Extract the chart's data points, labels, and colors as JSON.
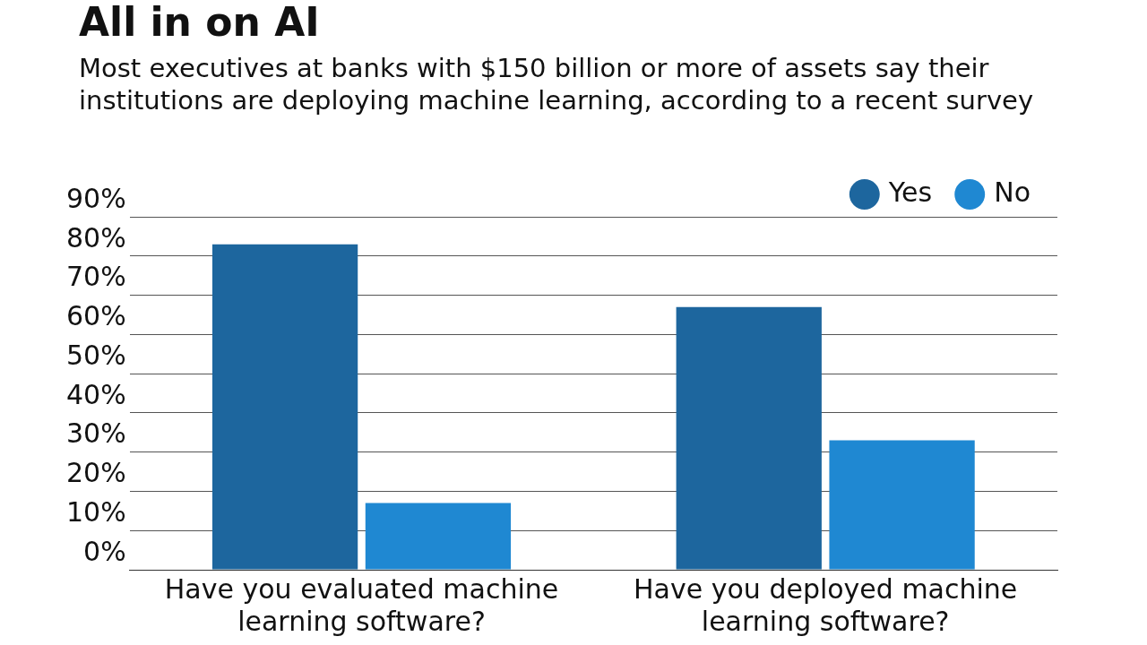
{
  "chart_data": {
    "type": "bar",
    "title": "All in on AI",
    "subtitle": "Most executives at banks with $150 billion or more of assets say their institutions are deploying machine learning, according to a recent survey",
    "categories": [
      "Have you evaluated machine learning software?",
      "Have you deployed machine learning software?"
    ],
    "series": [
      {
        "name": "Yes",
        "color": "#1d669e",
        "values": [
          83,
          67
        ]
      },
      {
        "name": "No",
        "color": "#1f88d2",
        "values": [
          17,
          33
        ]
      }
    ],
    "ylim": [
      0,
      90
    ],
    "yticks": [
      {
        "value": 0,
        "label": "0%"
      },
      {
        "value": 10,
        "label": "10%"
      },
      {
        "value": 20,
        "label": "20%"
      },
      {
        "value": 30,
        "label": "30%"
      },
      {
        "value": 40,
        "label": "40%"
      },
      {
        "value": 50,
        "label": "50%"
      },
      {
        "value": 60,
        "label": "60%"
      },
      {
        "value": 70,
        "label": "70%"
      },
      {
        "value": 80,
        "label": "80%"
      },
      {
        "value": 90,
        "label": "90%"
      }
    ],
    "grid": "y",
    "legend": "top right"
  }
}
